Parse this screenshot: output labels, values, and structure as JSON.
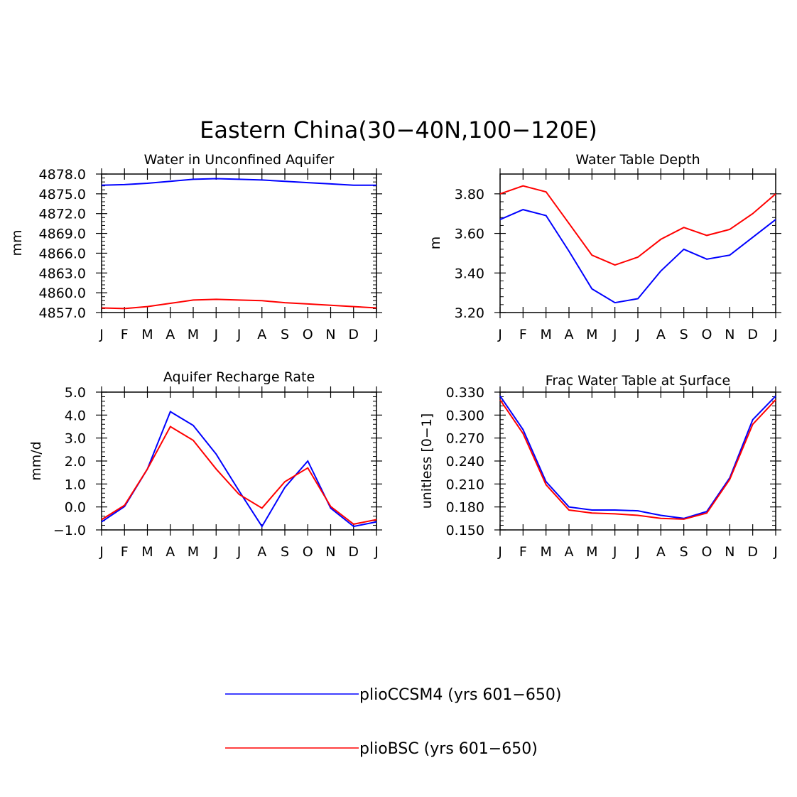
{
  "figure": {
    "title": "Eastern China(30−40N,100−120E)"
  },
  "colors": {
    "plioCCSM4": "#0000ff",
    "plioBSC": "#ff0000"
  },
  "legend": {
    "items": [
      {
        "label": "plioCCSM4 (yrs 601−650)",
        "color": "#0000ff"
      },
      {
        "label": "plioBSC (yrs 601−650)",
        "color": "#ff0000"
      }
    ]
  },
  "chart_data": [
    {
      "type": "line",
      "title": "Water in Unconfined Aquifer",
      "ylabel": "mm",
      "xlabel": "",
      "categories": [
        "J",
        "F",
        "M",
        "A",
        "M",
        "J",
        "J",
        "A",
        "S",
        "O",
        "N",
        "D",
        "J"
      ],
      "ylim": [
        4857.0,
        4878.0
      ],
      "yticks": [
        "4878.0",
        "4875.0",
        "4872.0",
        "4869.0",
        "4866.0",
        "4863.0",
        "4860.0",
        "4857.0"
      ],
      "series": [
        {
          "name": "plioCCSM4 (yrs 601−650)",
          "color": "#0000ff",
          "values": [
            4876.3,
            4876.4,
            4876.6,
            4876.9,
            4877.2,
            4877.3,
            4877.2,
            4877.1,
            4876.9,
            4876.7,
            4876.5,
            4876.3,
            4876.3
          ]
        },
        {
          "name": "plioBSC (yrs 601−650)",
          "color": "#ff0000",
          "values": [
            4857.7,
            4857.6,
            4857.9,
            4858.4,
            4858.9,
            4859.0,
            4858.9,
            4858.8,
            4858.5,
            4858.3,
            4858.1,
            4857.9,
            4857.7
          ]
        }
      ]
    },
    {
      "type": "line",
      "title": "Water Table Depth",
      "ylabel": "m",
      "xlabel": "",
      "categories": [
        "J",
        "F",
        "M",
        "A",
        "M",
        "J",
        "J",
        "A",
        "S",
        "O",
        "N",
        "D",
        "J"
      ],
      "ylim": [
        3.2,
        3.9
      ],
      "yticks": [
        "3.80",
        "3.60",
        "3.40",
        "3.20"
      ],
      "series": [
        {
          "name": "plioCCSM4 (yrs 601−650)",
          "color": "#0000ff",
          "values": [
            3.67,
            3.72,
            3.69,
            3.51,
            3.32,
            3.25,
            3.27,
            3.41,
            3.52,
            3.47,
            3.49,
            3.58,
            3.67
          ]
        },
        {
          "name": "plioBSC (yrs 601−650)",
          "color": "#ff0000",
          "values": [
            3.8,
            3.84,
            3.81,
            3.65,
            3.49,
            3.44,
            3.48,
            3.57,
            3.63,
            3.59,
            3.62,
            3.7,
            3.8
          ]
        }
      ]
    },
    {
      "type": "line",
      "title": "Aquifer Recharge Rate",
      "ylabel": "mm/d",
      "xlabel": "",
      "categories": [
        "J",
        "F",
        "M",
        "A",
        "M",
        "J",
        "J",
        "A",
        "S",
        "O",
        "N",
        "D",
        "J"
      ],
      "ylim": [
        -1.0,
        5.0
      ],
      "yticks": [
        "5.0",
        "4.0",
        "3.0",
        "2.0",
        "1.0",
        "0.0",
        "−1.0"
      ],
      "series": [
        {
          "name": "plioCCSM4 (yrs 601−650)",
          "color": "#0000ff",
          "values": [
            -0.65,
            0.02,
            1.65,
            4.15,
            3.55,
            2.3,
            0.7,
            -0.85,
            0.85,
            2.0,
            -0.05,
            -0.85,
            -0.65
          ]
        },
        {
          "name": "plioBSC (yrs 601−650)",
          "color": "#ff0000",
          "values": [
            -0.55,
            0.07,
            1.65,
            3.5,
            2.9,
            1.65,
            0.55,
            -0.05,
            1.1,
            1.7,
            0.02,
            -0.75,
            -0.55
          ]
        }
      ]
    },
    {
      "type": "line",
      "title": "Frac Water Table at Surface",
      "ylabel": "unitless [0−1]",
      "xlabel": "",
      "categories": [
        "J",
        "F",
        "M",
        "A",
        "M",
        "J",
        "J",
        "A",
        "S",
        "O",
        "N",
        "D",
        "J"
      ],
      "ylim": [
        0.15,
        0.33
      ],
      "yticks": [
        "0.330",
        "0.300",
        "0.270",
        "0.240",
        "0.210",
        "0.180",
        "0.150"
      ],
      "series": [
        {
          "name": "plioCCSM4 (yrs 601−650)",
          "color": "#0000ff",
          "values": [
            0.325,
            0.281,
            0.213,
            0.18,
            0.176,
            0.176,
            0.175,
            0.169,
            0.165,
            0.174,
            0.218,
            0.294,
            0.325
          ]
        },
        {
          "name": "plioBSC (yrs 601−650)",
          "color": "#ff0000",
          "values": [
            0.32,
            0.276,
            0.209,
            0.176,
            0.172,
            0.171,
            0.169,
            0.165,
            0.164,
            0.172,
            0.216,
            0.288,
            0.32
          ]
        }
      ]
    }
  ]
}
